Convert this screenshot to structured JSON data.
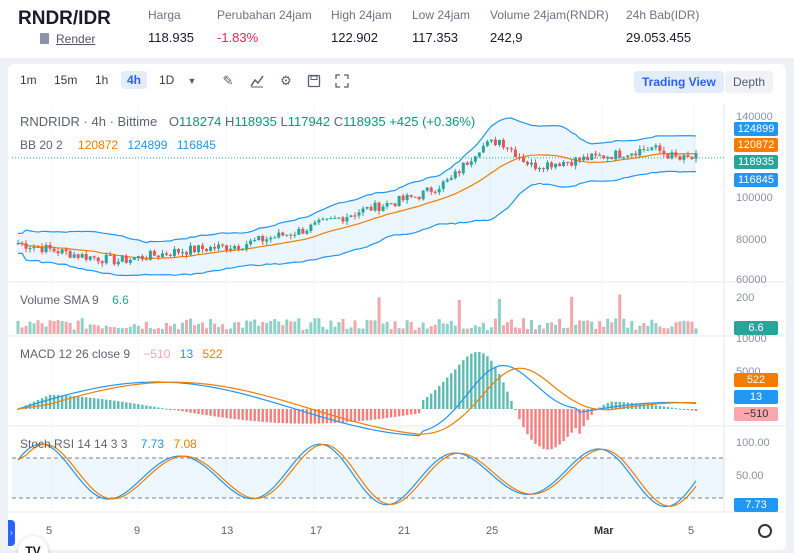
{
  "header": {
    "pair": "RNDR/IDR",
    "sublink": "Render",
    "stats": [
      {
        "label": "Harga",
        "value": "118.935"
      },
      {
        "label": "Perubahan 24jam",
        "value": "-1.83%"
      },
      {
        "label": "High 24jam",
        "value": "122.902"
      },
      {
        "label": "Low 24jam",
        "value": "117.353"
      },
      {
        "label": "Volume 24jam(RNDR)",
        "value": "242,9"
      },
      {
        "label": "24h Bab(IDR)",
        "value": "29.053.455"
      }
    ]
  },
  "toolbar": {
    "intervals": [
      "1m",
      "15m",
      "1h",
      "4h",
      "1D"
    ],
    "active_interval": "4h",
    "modes": [
      "Trading View",
      "Depth"
    ],
    "icons": [
      "dropdown-caret-icon",
      "draw-pencil-icon",
      "indicator-chart-icon",
      "settings-gear-icon",
      "save-disk-icon",
      "fullscreen-icon"
    ]
  },
  "legend": {
    "symbol": "RNDRIDR · 4h · Bittime",
    "o_label": "O",
    "o": "118274",
    "h_label": "H",
    "h": "118935",
    "l_label": "L",
    "l": "117942",
    "c_label": "C",
    "c": "118935",
    "change": "+425 (+0.36%)",
    "bb_label": "BB 20 2",
    "bb_basis": "120872",
    "bb_upper": "124899",
    "bb_lower": "116845",
    "volume_label": "Volume SMA 9",
    "volume_value": "6.6",
    "macd_label": "MACD 12 26 close 9",
    "macd_hist": "−510",
    "macd_line": "13",
    "macd_signal": "522",
    "stoch_label": "Stoch RSI 14 14 3 3",
    "stoch_k": "7.73",
    "stoch_d": "7.08"
  },
  "price_axis": {
    "labels": [
      "140000",
      "120000",
      "100000",
      "80000",
      "60000"
    ],
    "tags": [
      "124899",
      "120872",
      "118935",
      "116845"
    ]
  },
  "volume_axis": {
    "labels": [
      "200"
    ],
    "tag": "6.6"
  },
  "macd_axis": {
    "labels": [
      "10000",
      "5000"
    ],
    "tags": [
      "522",
      "13",
      "−510"
    ]
  },
  "stoch_axis": {
    "labels": [
      "100.00",
      "50.00"
    ],
    "tag": "7.73"
  },
  "date_axis": [
    "5",
    "9",
    "13",
    "17",
    "21",
    "25",
    "Mar",
    "5"
  ],
  "logo_text": "TV",
  "colors": {
    "up": "#26a69a",
    "down": "#ef5350",
    "bb_band": "#2196f3",
    "bb_basis": "#f57c00",
    "tag_blue": "#2196f3",
    "tag_orange": "#f57c00",
    "tag_green": "#26a69a",
    "tag_pink": "#f7a8ae",
    "neg_text": "#e5264a",
    "accent": "#2962ff"
  },
  "chart_data": {
    "type": "line",
    "title": "RNDRIDR · 4h · Bittime",
    "ylim": [
      60000,
      140000
    ],
    "x": [
      "5",
      "9",
      "13",
      "17",
      "21",
      "25",
      "Mar",
      "5"
    ],
    "series": [
      {
        "name": "BB 20 2",
        "values": [
          77000,
          68000,
          73000,
          86000,
          99000,
          118000,
          117000,
          120872
        ]
      }
    ],
    "last": {
      "open": 118274,
      "high": 118935,
      "low": 117942,
      "close": 118935
    }
  }
}
